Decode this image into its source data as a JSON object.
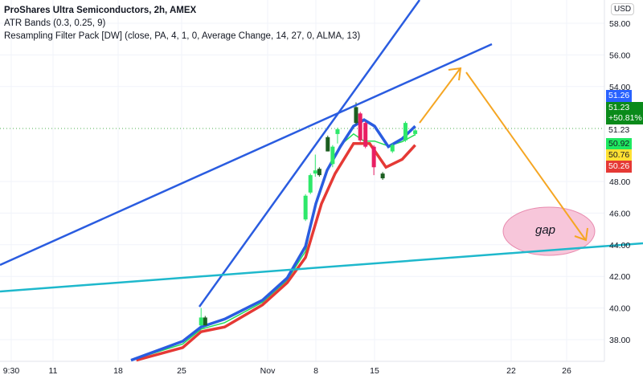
{
  "legend": {
    "title": "ProShares Ultra Semiconductors, 2h, AMEX",
    "ind1": "ATR Bands (0.3, 0.25, 9)",
    "ind2": "Resampling Filter Pack [DW] (close, PA, 4, 1, 0, Average Change, 14, 27, 0, ALMA, 13)"
  },
  "currency": "USD",
  "annotation_text": "gap",
  "colors": {
    "upper_band": "#2a5ce0",
    "lower_band": "#e53935",
    "mid_line": "#22dd55",
    "trendline": "#2a5ce0",
    "support_line": "#1eb8cc",
    "arrow": "#f5a623",
    "gap_ellipse": "#f7c6da",
    "up_candle": "#2ee86a",
    "down_candle": "#1b5e20",
    "down_red": "#e91e63"
  },
  "price_badges": [
    {
      "text": "51.26",
      "bg": "#2962ff",
      "fg": "#ffffff"
    },
    {
      "text": "51.23\n+50.81%",
      "bg": "#0a8a1a",
      "fg": "#ffffff"
    },
    {
      "text": "51.23",
      "bg": "#ffffff",
      "fg": "#131722"
    },
    {
      "text": "50.92",
      "bg": "#1ee860",
      "fg": "#131722"
    },
    {
      "text": "50.76",
      "bg": "#ffe032",
      "fg": "#131722"
    },
    {
      "text": "50.26",
      "bg": "#e53935",
      "fg": "#ffffff"
    }
  ],
  "chart_data": {
    "type": "candlestick",
    "ylim": [
      37,
      59
    ],
    "y_ticks": [
      "58.00",
      "56.00",
      "54.00",
      "48.00",
      "46.00",
      "44.00",
      "42.00",
      "40.00",
      "38.00"
    ],
    "x_ticks": [
      "9:30",
      "11",
      "18",
      "25",
      "Nov",
      "8",
      "15",
      "22",
      "26"
    ],
    "last_price": 51.23,
    "change_pct": "+50.81%",
    "series": [
      {
        "name": "upper",
        "points": [
          [
            "10-19 10",
            36.7
          ],
          [
            "10-25 02",
            37.9
          ],
          [
            "10-26 14",
            38.8
          ],
          [
            "10-28 12",
            39.3
          ],
          [
            "10-31 14",
            40.5
          ],
          [
            "11-03 20",
            41.9
          ],
          [
            "11-06 12",
            43.9
          ],
          [
            "11-08 00",
            46.6
          ],
          [
            "11-09 08",
            48.7
          ],
          [
            "11-10 22",
            50.2
          ],
          [
            "11-12 12",
            51.5
          ],
          [
            "11-13 18",
            51.9
          ],
          [
            "11-15 00",
            51.5
          ],
          [
            "11-15 17",
            50.2
          ],
          [
            "11-16 10",
            50.7
          ],
          [
            "11-17 02",
            51.5
          ]
        ]
      },
      {
        "name": "lower",
        "points": [
          [
            "10-20 00",
            36.7
          ],
          [
            "10-25 02",
            37.5
          ],
          [
            "10-26 14",
            38.5
          ],
          [
            "10-28 12",
            38.8
          ],
          [
            "10-31 14",
            40.2
          ],
          [
            "11-03 20",
            41.6
          ],
          [
            "11-06 12",
            43.2
          ],
          [
            "11-08 16",
            46.6
          ],
          [
            "11-10 07",
            48.5
          ],
          [
            "11-12 12",
            50.4
          ],
          [
            "11-14 10",
            50.4
          ],
          [
            "11-15 14",
            48.9
          ],
          [
            "11-16 10",
            49.4
          ],
          [
            "11-17 02",
            50.3
          ]
        ]
      }
    ],
    "candles": [
      [
        "10-26 14",
        38.9,
        40.0,
        38.9,
        39.4
      ],
      [
        "10-26 22",
        39.4,
        39.5,
        38.9,
        38.9
      ],
      [
        "11-06 12",
        45.6,
        47.2,
        45.5,
        47.1
      ],
      [
        "11-07 05",
        47.3,
        48.5,
        47.2,
        48.4
      ],
      [
        "11-07 22",
        48.5,
        49.7,
        48.3,
        48.7
      ],
      [
        "11-08 10",
        48.8,
        48.9,
        48.3,
        48.4
      ],
      [
        "11-09 10",
        50.8,
        50.9,
        49.9,
        49.9
      ],
      [
        "11-10 00",
        49.1,
        50.3,
        48.9,
        50.2
      ],
      [
        "11-10 14",
        51.0,
        51.4,
        50.4,
        51.3
      ],
      [
        "11-12 19",
        52.7,
        53.0,
        51.6,
        51.7
      ],
      [
        "11-13 07",
        52.3,
        52.4,
        50.5,
        50.6
      ],
      [
        "11-13 22",
        51.7,
        51.8,
        50.1,
        50.2
      ],
      [
        "11-14 22",
        50.2,
        50.3,
        48.4,
        48.9
      ],
      [
        "11-15 10",
        48.5,
        48.6,
        48.1,
        48.2
      ],
      [
        "11-15 22",
        49.9,
        50.4,
        49.8,
        50.3
      ],
      [
        "11-16 14",
        50.6,
        51.8,
        50.5,
        51.7
      ],
      [
        "11-17 02",
        51.0,
        51.3,
        50.9,
        51.23
      ]
    ]
  }
}
